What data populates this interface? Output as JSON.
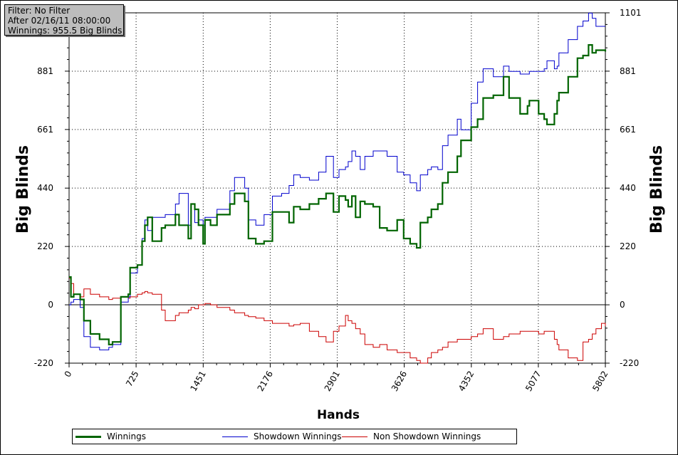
{
  "info": {
    "filter": "Filter: No Filter",
    "after": "After 02/16/11 08:00:00",
    "winnings": "Winnings: 955.5 Big Blinds"
  },
  "legend": [
    {
      "label": "Winnings",
      "color": "#006400"
    },
    {
      "label": "Showdown Winnings",
      "color": "#0000cd"
    },
    {
      "label": "Non Showdown Winnings",
      "color": "#cc0000"
    }
  ],
  "chart_data": {
    "type": "line",
    "xlabel": "Hands",
    "ylabel": "Big Blinds",
    "xlim": [
      0,
      5802
    ],
    "ylim": [
      -220,
      1101
    ],
    "x_ticks": [
      0,
      725,
      1451,
      2176,
      2901,
      3626,
      4352,
      5077,
      5802
    ],
    "y_ticks": [
      -220,
      0,
      220,
      440,
      661,
      881,
      1101
    ],
    "grid": true,
    "legend_position": "bottom",
    "series": [
      {
        "name": "Winnings",
        "color": "#006400",
        "x": [
          0,
          20,
          50,
          120,
          160,
          230,
          330,
          430,
          470,
          560,
          640,
          660,
          740,
          790,
          820,
          850,
          900,
          1000,
          1040,
          1150,
          1190,
          1290,
          1320,
          1360,
          1400,
          1450,
          1470,
          1530,
          1600,
          1740,
          1790,
          1900,
          1940,
          2020,
          2110,
          2200,
          2300,
          2380,
          2430,
          2500,
          2600,
          2700,
          2780,
          2860,
          2920,
          2990,
          3020,
          3060,
          3100,
          3150,
          3200,
          3290,
          3360,
          3440,
          3550,
          3620,
          3690,
          3760,
          3800,
          3880,
          3920,
          3990,
          4040,
          4100,
          4200,
          4240,
          4350,
          4420,
          4480,
          4590,
          4700,
          4760,
          4880,
          4960,
          4980,
          5080,
          5140,
          5170,
          5250,
          5280,
          5300,
          5400,
          5500,
          5560,
          5620,
          5660,
          5700,
          5760,
          5802
        ],
        "y": [
          105,
          30,
          40,
          20,
          -60,
          -110,
          -130,
          -150,
          -140,
          30,
          40,
          140,
          150,
          240,
          300,
          330,
          240,
          290,
          300,
          340,
          300,
          250,
          380,
          360,
          300,
          230,
          320,
          300,
          340,
          380,
          420,
          390,
          250,
          230,
          240,
          350,
          350,
          310,
          370,
          360,
          380,
          400,
          420,
          350,
          410,
          395,
          370,
          410,
          330,
          390,
          380,
          370,
          290,
          280,
          320,
          250,
          230,
          215,
          310,
          330,
          360,
          380,
          460,
          500,
          560,
          620,
          670,
          700,
          780,
          790,
          860,
          780,
          720,
          750,
          770,
          720,
          700,
          680,
          720,
          770,
          800,
          860,
          930,
          940,
          980,
          950,
          960,
          960,
          955
        ]
      },
      {
        "name": "Showdown Winnings",
        "color": "#0000cd",
        "x": [
          0,
          20,
          50,
          120,
          160,
          230,
          330,
          430,
          470,
          560,
          640,
          660,
          740,
          790,
          820,
          850,
          900,
          1000,
          1040,
          1150,
          1190,
          1290,
          1320,
          1360,
          1400,
          1450,
          1470,
          1530,
          1600,
          1740,
          1790,
          1900,
          1940,
          2020,
          2110,
          2200,
          2300,
          2380,
          2430,
          2500,
          2600,
          2700,
          2780,
          2860,
          2920,
          2990,
          3020,
          3060,
          3100,
          3150,
          3200,
          3290,
          3360,
          3440,
          3550,
          3620,
          3690,
          3760,
          3800,
          3880,
          3920,
          3990,
          4040,
          4100,
          4200,
          4240,
          4350,
          4420,
          4480,
          4590,
          4700,
          4760,
          4880,
          4960,
          4980,
          5080,
          5140,
          5170,
          5250,
          5280,
          5300,
          5400,
          5500,
          5560,
          5620,
          5660,
          5700,
          5760,
          5802
        ],
        "y": [
          0,
          10,
          20,
          -10,
          -120,
          -160,
          -170,
          -160,
          -150,
          10,
          30,
          120,
          150,
          250,
          320,
          280,
          330,
          330,
          340,
          380,
          420,
          300,
          380,
          310,
          320,
          300,
          330,
          330,
          360,
          430,
          480,
          440,
          320,
          300,
          340,
          410,
          420,
          450,
          490,
          480,
          470,
          500,
          560,
          480,
          510,
          520,
          540,
          580,
          560,
          510,
          560,
          580,
          580,
          560,
          500,
          490,
          460,
          430,
          490,
          510,
          520,
          510,
          600,
          640,
          700,
          660,
          760,
          840,
          890,
          860,
          900,
          880,
          870,
          870,
          880,
          880,
          890,
          920,
          890,
          900,
          950,
          1000,
          1050,
          1070,
          1100,
          1080,
          1050,
          1050,
          1050
        ]
      },
      {
        "name": "Non Showdown Winnings",
        "color": "#cc0000",
        "x": [
          0,
          20,
          50,
          120,
          160,
          230,
          330,
          430,
          470,
          560,
          640,
          660,
          740,
          790,
          820,
          850,
          900,
          1000,
          1040,
          1150,
          1190,
          1290,
          1320,
          1360,
          1400,
          1450,
          1470,
          1530,
          1600,
          1740,
          1790,
          1900,
          1940,
          2020,
          2110,
          2200,
          2300,
          2380,
          2430,
          2500,
          2600,
          2700,
          2780,
          2860,
          2920,
          2990,
          3020,
          3060,
          3100,
          3150,
          3200,
          3290,
          3360,
          3440,
          3550,
          3620,
          3690,
          3760,
          3800,
          3880,
          3920,
          3990,
          4040,
          4100,
          4200,
          4240,
          4350,
          4420,
          4480,
          4590,
          4700,
          4760,
          4880,
          4960,
          4980,
          5080,
          5140,
          5170,
          5250,
          5280,
          5300,
          5400,
          5500,
          5560,
          5620,
          5660,
          5700,
          5760,
          5802
        ],
        "y": [
          100,
          80,
          40,
          30,
          60,
          40,
          30,
          20,
          25,
          30,
          25,
          30,
          40,
          45,
          50,
          45,
          40,
          -20,
          -60,
          -40,
          -30,
          -20,
          -10,
          -15,
          0,
          0,
          5,
          0,
          -10,
          -20,
          -30,
          -40,
          -45,
          -50,
          -60,
          -70,
          -70,
          -80,
          -75,
          -70,
          -100,
          -120,
          -140,
          -100,
          -80,
          -40,
          -60,
          -70,
          -90,
          -110,
          -150,
          -160,
          -150,
          -170,
          -180,
          -180,
          -200,
          -210,
          -220,
          -200,
          -180,
          -170,
          -160,
          -140,
          -130,
          -130,
          -120,
          -110,
          -90,
          -130,
          -120,
          -110,
          -100,
          -100,
          -100,
          -110,
          -100,
          -100,
          -130,
          -150,
          -170,
          -200,
          -210,
          -140,
          -130,
          -110,
          -90,
          -70,
          -80
        ]
      }
    ]
  }
}
